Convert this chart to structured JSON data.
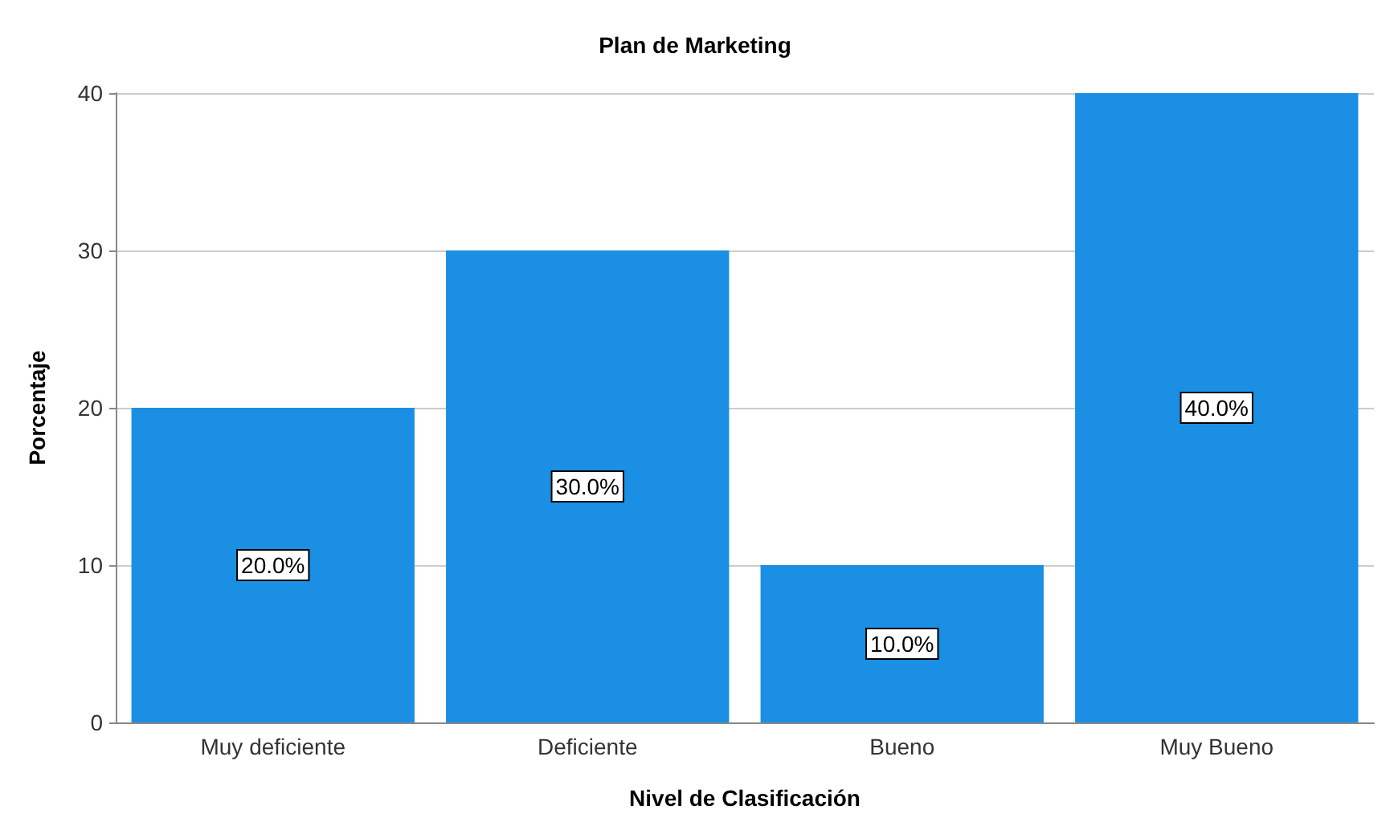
{
  "chart_data": {
    "type": "bar",
    "title": "Plan de Marketing",
    "xlabel": "Nivel de Clasificación",
    "ylabel": "Porcentaje",
    "categories": [
      "Muy deficiente",
      "Deficiente",
      "Bueno",
      "Muy Bueno"
    ],
    "values": [
      20,
      30,
      10,
      40
    ],
    "color": "#1a8fe3",
    "value_labels": [
      "20.0%",
      "30.0%",
      "10.0%",
      "40.0%"
    ],
    "ylim": [
      0,
      40
    ],
    "yticks": [
      0,
      10,
      20,
      30,
      40
    ],
    "grid": "y"
  }
}
